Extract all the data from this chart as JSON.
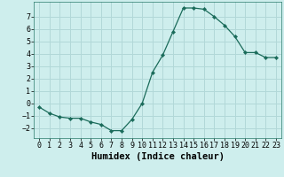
{
  "xlabel": "Humidex (Indice chaleur)",
  "x": [
    0,
    1,
    2,
    3,
    4,
    5,
    6,
    7,
    8,
    9,
    10,
    11,
    12,
    13,
    14,
    15,
    16,
    17,
    18,
    19,
    20,
    21,
    22,
    23
  ],
  "y": [
    -0.3,
    -0.8,
    -1.1,
    -1.2,
    -1.2,
    -1.5,
    -1.7,
    -2.2,
    -2.2,
    -1.3,
    -0.0,
    2.5,
    3.9,
    5.8,
    7.7,
    7.7,
    7.6,
    7.0,
    6.3,
    5.4,
    4.1,
    4.1,
    3.7,
    3.7
  ],
  "ylim": [
    -2.8,
    8.2
  ],
  "yticks": [
    -2,
    -1,
    0,
    1,
    2,
    3,
    4,
    5,
    6,
    7
  ],
  "xticks": [
    0,
    1,
    2,
    3,
    4,
    5,
    6,
    7,
    8,
    9,
    10,
    11,
    12,
    13,
    14,
    15,
    16,
    17,
    18,
    19,
    20,
    21,
    22,
    23
  ],
  "line_color": "#1a6b5a",
  "marker": "D",
  "marker_size": 2.2,
  "bg_color": "#ceeeed",
  "grid_color": "#b2d8d8",
  "tick_fontsize": 6.0,
  "xlabel_fontsize": 7.5,
  "xlabel_fontweight": "bold"
}
